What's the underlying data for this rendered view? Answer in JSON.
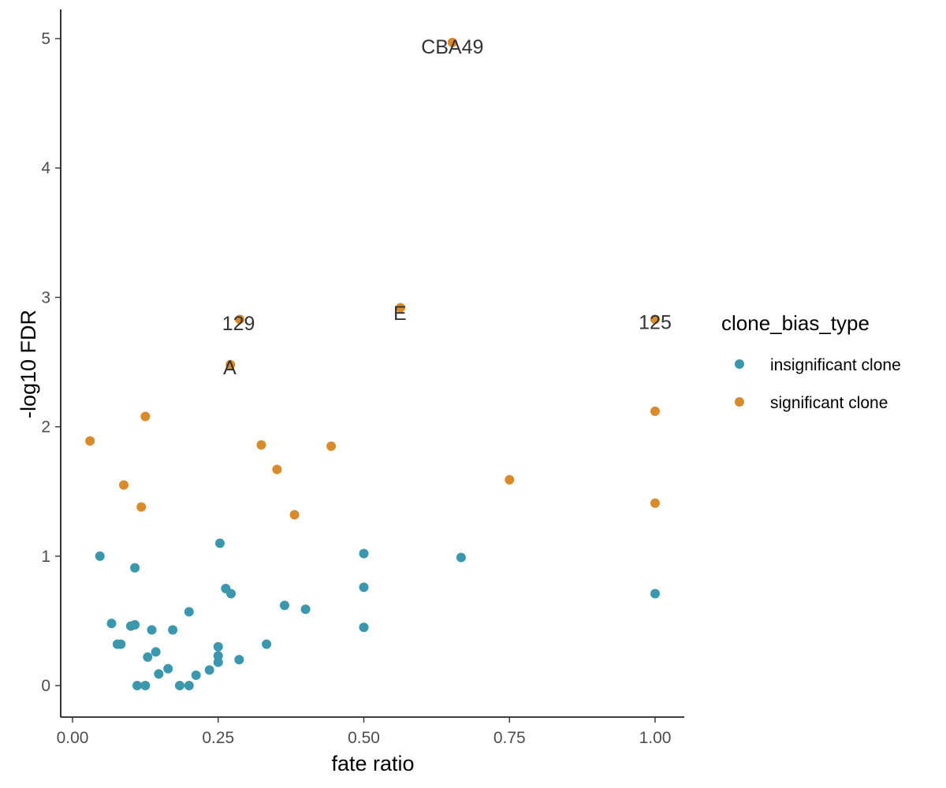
{
  "chart_data": {
    "type": "scatter",
    "title": "",
    "xlabel": "fate ratio",
    "ylabel": "-log10 FDR",
    "xlim": [
      -0.02,
      1.05
    ],
    "ylim": [
      -0.24,
      5.2
    ],
    "x_ticks": [
      "0.00",
      "0.25",
      "0.50",
      "0.75",
      "1.00"
    ],
    "x_tick_values": [
      0,
      0.25,
      0.5,
      0.75,
      1.0
    ],
    "y_ticks": [
      "0",
      "1",
      "2",
      "3",
      "4",
      "5"
    ],
    "y_tick_values": [
      0,
      1,
      2,
      3,
      4,
      5
    ],
    "grid": false,
    "legend": {
      "title": "clone_bias_type",
      "placement": "right",
      "entries": [
        {
          "label": "insignificant clone",
          "color": "#3a97ad"
        },
        {
          "label": "significant clone",
          "color": "#d98b2b"
        }
      ]
    },
    "series": [
      {
        "name": "insignificant clone",
        "color": "#3a97ad",
        "points": [
          [
            0.047,
            1.0
          ],
          [
            0.067,
            0.48
          ],
          [
            0.077,
            0.32
          ],
          [
            0.083,
            0.32
          ],
          [
            0.1,
            0.46
          ],
          [
            0.107,
            0.47
          ],
          [
            0.107,
            0.91
          ],
          [
            0.111,
            0.0
          ],
          [
            0.125,
            0.0
          ],
          [
            0.129,
            0.22
          ],
          [
            0.136,
            0.43
          ],
          [
            0.143,
            0.26
          ],
          [
            0.148,
            0.09
          ],
          [
            0.164,
            0.13
          ],
          [
            0.172,
            0.43
          ],
          [
            0.184,
            0.0
          ],
          [
            0.2,
            0.0
          ],
          [
            0.2,
            0.57
          ],
          [
            0.212,
            0.08
          ],
          [
            0.235,
            0.12
          ],
          [
            0.25,
            0.18
          ],
          [
            0.25,
            0.23
          ],
          [
            0.25,
            0.3
          ],
          [
            0.253,
            1.1
          ],
          [
            0.263,
            0.75
          ],
          [
            0.272,
            0.71
          ],
          [
            0.286,
            0.2
          ],
          [
            0.333,
            0.32
          ],
          [
            0.364,
            0.62
          ],
          [
            0.4,
            0.59
          ],
          [
            0.5,
            0.45
          ],
          [
            0.5,
            0.76
          ],
          [
            0.5,
            1.02
          ],
          [
            0.667,
            0.99
          ],
          [
            1.0,
            0.71
          ]
        ]
      },
      {
        "name": "significant clone",
        "color": "#d98b2b",
        "points": [
          [
            0.03,
            1.89
          ],
          [
            0.088,
            1.55
          ],
          [
            0.118,
            1.38
          ],
          [
            0.125,
            2.08
          ],
          [
            0.271,
            2.48
          ],
          [
            0.287,
            2.83
          ],
          [
            0.324,
            1.86
          ],
          [
            0.351,
            1.67
          ],
          [
            0.381,
            1.32
          ],
          [
            0.444,
            1.85
          ],
          [
            0.563,
            2.92
          ],
          [
            0.652,
            4.97
          ],
          [
            0.75,
            1.59
          ],
          [
            1.0,
            1.41
          ],
          [
            1.0,
            2.12
          ],
          [
            1.0,
            2.83
          ]
        ]
      }
    ],
    "annotations": [
      {
        "text": "CBA49",
        "x": 0.652,
        "y": 4.94
      },
      {
        "text": "129",
        "x": 0.285,
        "y": 2.8
      },
      {
        "text": "A",
        "x": 0.27,
        "y": 2.46
      },
      {
        "text": "E",
        "x": 0.562,
        "y": 2.88
      },
      {
        "text": "125",
        "x": 1.0,
        "y": 2.81
      }
    ]
  }
}
